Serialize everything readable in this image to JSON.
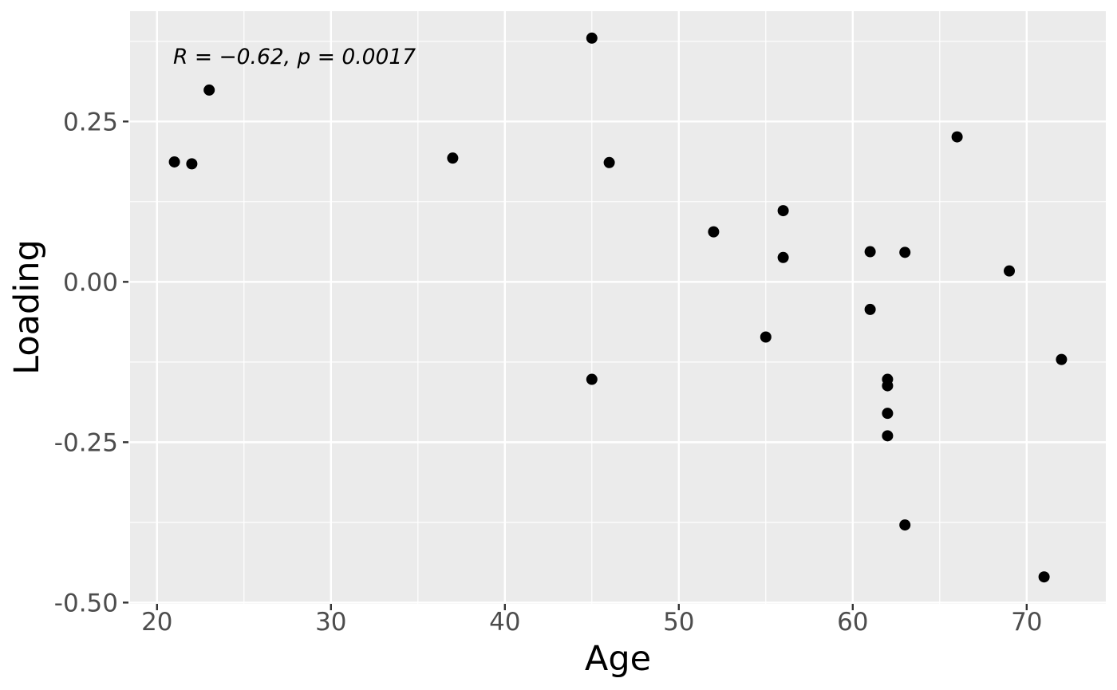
{
  "chart_data": {
    "type": "scatter",
    "title": "",
    "xlabel": "Age",
    "ylabel": "Loading",
    "annotation": "R = −0.62, p = 0.0017",
    "x": [
      21,
      22,
      23,
      37,
      45,
      45,
      46,
      52,
      55,
      56,
      56,
      61,
      61,
      62,
      62,
      62,
      62,
      63,
      63,
      66,
      69,
      71,
      72
    ],
    "y": [
      0.187,
      0.184,
      0.299,
      0.193,
      0.38,
      -0.152,
      0.186,
      0.078,
      -0.086,
      0.111,
      0.038,
      0.047,
      -0.043,
      -0.152,
      -0.162,
      -0.205,
      -0.24,
      0.046,
      -0.379,
      0.226,
      0.017,
      -0.46,
      -0.121
    ],
    "xlim": [
      18.45,
      74.55
    ],
    "ylim": [
      -0.502,
      0.422
    ],
    "x_major_ticks": [
      20,
      30,
      40,
      50,
      60,
      70
    ],
    "x_tick_labels": [
      "20",
      "30",
      "40",
      "50",
      "60",
      "70"
    ],
    "x_minor_ticks": [
      25,
      35,
      45,
      55,
      65
    ],
    "y_major_ticks": [
      0.25,
      0.0,
      -0.25,
      -0.5
    ],
    "y_tick_labels": [
      "0.25",
      "0.00",
      "-0.25",
      "-0.50"
    ],
    "y_minor_ticks": [
      0.375,
      0.125,
      -0.125,
      -0.375
    ],
    "grid": true,
    "legend": "none",
    "style": {
      "panel_bg": "#EBEBEB",
      "grid_color": "#FFFFFF",
      "point_color": "#000000",
      "tick_color": "#333333",
      "tick_label_color": "#4D4D4D",
      "axis_title_color": "#000000",
      "point_radius": 7
    }
  }
}
